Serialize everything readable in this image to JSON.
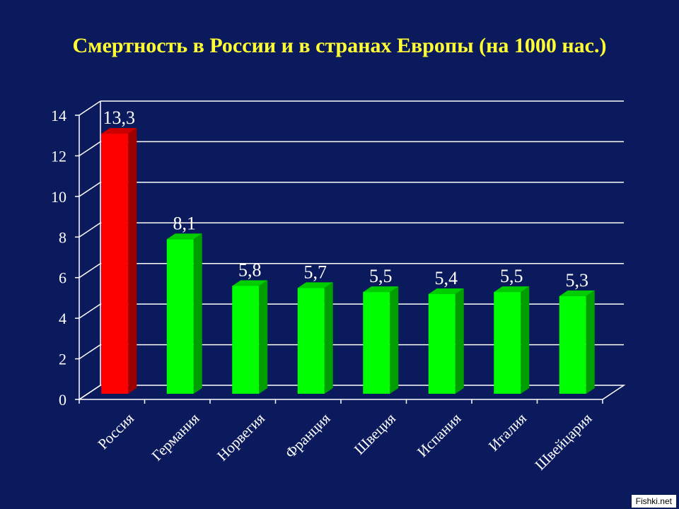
{
  "chart_data": {
    "type": "bar",
    "title": "Смертность в России и в странах Европы (на 1000 нас.)",
    "xlabel": "",
    "ylabel": "",
    "ylim": [
      0,
      14
    ],
    "yticks": [
      0,
      2,
      4,
      6,
      8,
      10,
      12,
      14
    ],
    "ytick_labels": [
      "0",
      "2",
      "4",
      "6",
      "8",
      "10",
      "12",
      "14"
    ],
    "grid": true,
    "categories": [
      "Россия",
      "Германия",
      "Норвегия",
      "Франция",
      "Швеция",
      "Испания",
      "Италия",
      "Швейцария"
    ],
    "values": [
      13.3,
      8.1,
      5.8,
      5.7,
      5.5,
      5.4,
      5.5,
      5.3
    ],
    "data_labels": [
      "13,3",
      "8,1",
      "5,8",
      "5,7",
      "5,5",
      "5,4",
      "5,5",
      "5,3"
    ],
    "highlight_color": "#ff0000",
    "bar_color": "#00ff00"
  },
  "watermark": "Fishki.net"
}
